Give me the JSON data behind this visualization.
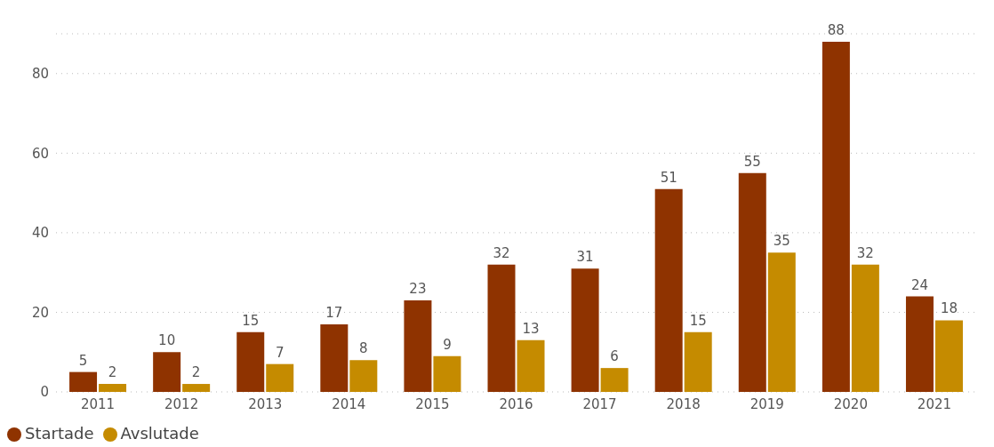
{
  "chart_data": {
    "type": "bar",
    "categories": [
      "2011",
      "2012",
      "2013",
      "2014",
      "2015",
      "2016",
      "2017",
      "2018",
      "2019",
      "2020",
      "2021"
    ],
    "series": [
      {
        "name": "Startade",
        "color": "#8f3300",
        "values": [
          5,
          10,
          15,
          17,
          23,
          32,
          31,
          51,
          55,
          88,
          24
        ]
      },
      {
        "name": "Avslutade",
        "color": "#c58b00",
        "values": [
          2,
          2,
          7,
          8,
          9,
          13,
          6,
          15,
          35,
          32,
          18
        ]
      }
    ],
    "ylim": [
      0,
      90
    ],
    "yticks": [
      0,
      20,
      40,
      60,
      80
    ],
    "grid": "y",
    "legend": "bottom left",
    "data_labels": true
  }
}
